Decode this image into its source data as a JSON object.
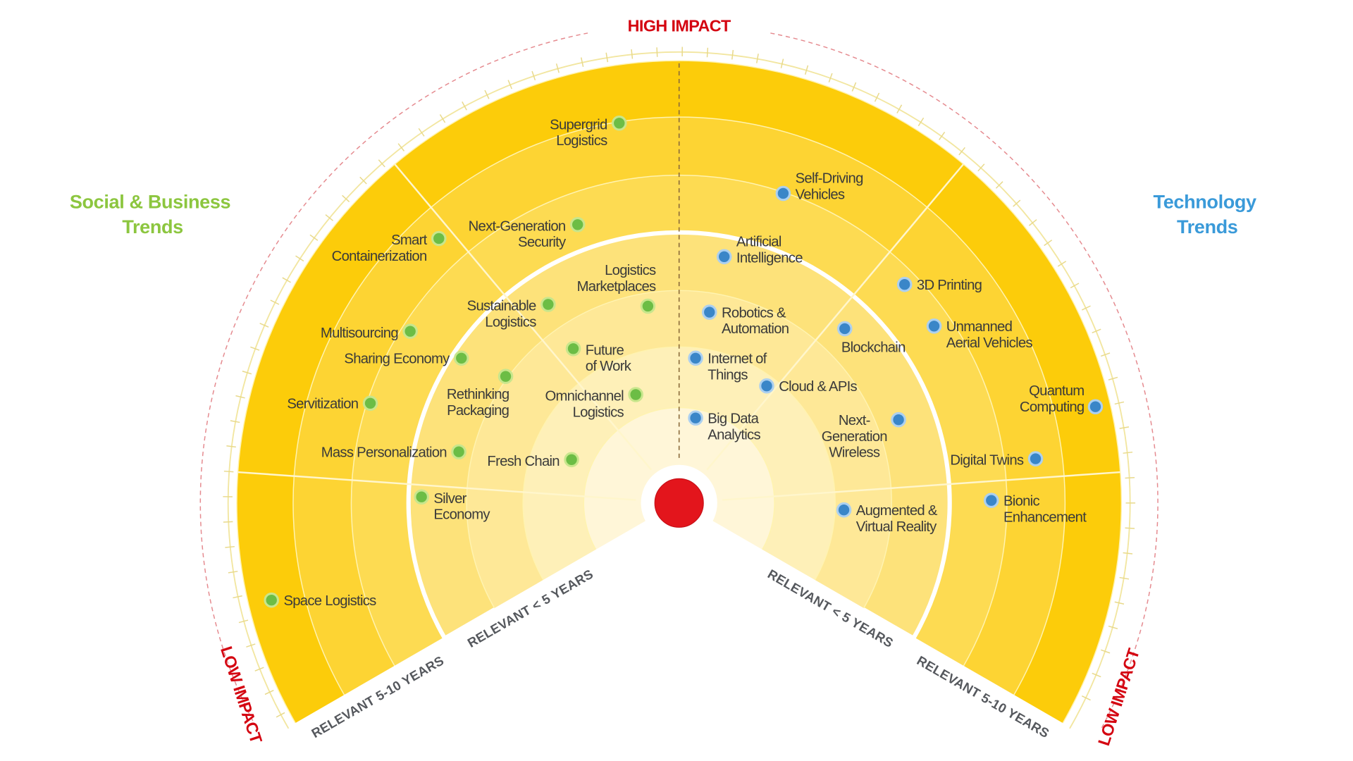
{
  "header": {
    "high_impact": "HIGH IMPACT",
    "low_impact_left": "LOW IMPACT",
    "low_impact_right": "LOW IMPACT"
  },
  "categories": {
    "social": {
      "lines": [
        "Social & Business",
        "Trends"
      ],
      "color": "#8cc63f"
    },
    "technology": {
      "lines": [
        "Technology",
        "Trends"
      ],
      "color": "#3a9ad9"
    }
  },
  "horizons": {
    "left_inner": "RELEVANT < 5 YEARS",
    "left_outer": "RELEVANT 5-10 YEARS",
    "right_inner": "RELEVANT < 5 YEARS",
    "right_outer": "RELEVANT 5-10 YEARS"
  },
  "colors": {
    "accent_red": "#d40511",
    "ring_outer": "#fccc0a",
    "social_dot": "#6cbd45",
    "tech_dot": "#3a86c8"
  },
  "social_trends": [
    {
      "lines": [
        "Supergrid",
        "Logistics"
      ]
    },
    {
      "lines": [
        "Smart",
        "Containerization"
      ]
    },
    {
      "lines": [
        "Next-Generation",
        "Security"
      ]
    },
    {
      "lines": [
        "Multisourcing"
      ]
    },
    {
      "lines": [
        "Sustainable",
        "Logistics"
      ]
    },
    {
      "lines": [
        "Logistics",
        "Marketplaces"
      ]
    },
    {
      "lines": [
        "Sharing Economy"
      ]
    },
    {
      "lines": [
        "Future",
        "of Work"
      ]
    },
    {
      "lines": [
        "Rethinking",
        "Packaging"
      ]
    },
    {
      "lines": [
        "Omnichannel",
        "Logistics"
      ]
    },
    {
      "lines": [
        "Servitization"
      ]
    },
    {
      "lines": [
        "Mass Personalization"
      ]
    },
    {
      "lines": [
        "Fresh Chain"
      ]
    },
    {
      "lines": [
        "Silver",
        "Economy"
      ]
    },
    {
      "lines": [
        "Space Logistics"
      ]
    }
  ],
  "technology_trends": [
    {
      "lines": [
        "Self-Driving",
        "Vehicles"
      ]
    },
    {
      "lines": [
        "Artificial",
        "Intelligence"
      ]
    },
    {
      "lines": [
        "3D Printing"
      ]
    },
    {
      "lines": [
        "Robotics &",
        "Automation"
      ]
    },
    {
      "lines": [
        "Blockchain"
      ]
    },
    {
      "lines": [
        "Unmanned",
        "Aerial Vehicles"
      ]
    },
    {
      "lines": [
        "Internet of",
        "Things"
      ]
    },
    {
      "lines": [
        "Cloud & APIs"
      ]
    },
    {
      "lines": [
        "Quantum",
        "Computing"
      ]
    },
    {
      "lines": [
        "Big Data",
        "Analytics"
      ]
    },
    {
      "lines": [
        "Next-",
        "Generation",
        "Wireless"
      ]
    },
    {
      "lines": [
        "Digital Twins"
      ]
    },
    {
      "lines": [
        "Augmented &",
        "Virtual Reality"
      ]
    },
    {
      "lines": [
        "Bionic",
        "Enhancement"
      ]
    }
  ]
}
